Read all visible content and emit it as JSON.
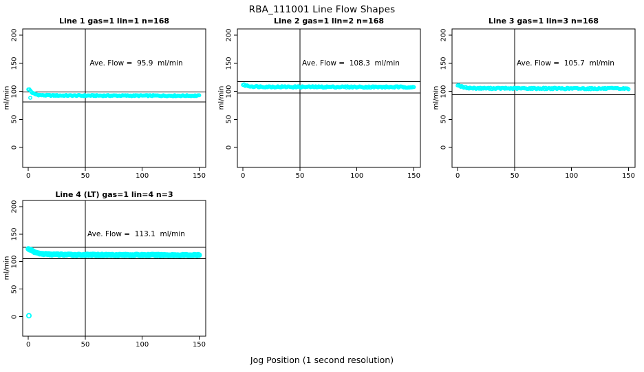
{
  "figure_title": "RBA_111001  Line Flow Shapes",
  "x_axis_title": "Jog Position (1 second resolution)",
  "y_axis_label": "ml/min",
  "colors": {
    "marker": "#00FFFF",
    "line": "#000000",
    "background": "#FFFFFF",
    "text": "#000000"
  },
  "axes": {
    "x_ticks": [
      0,
      50,
      100,
      150
    ],
    "y_ticks": [
      0,
      50,
      100,
      150,
      200
    ],
    "xlim": [
      0,
      150
    ],
    "ylim": [
      0,
      200
    ],
    "grid": false
  },
  "chart_data": [
    {
      "type": "scatter",
      "title": "Line 1 gas=1 lin=1 n=168",
      "annotation": "Ave. Flow =  95.9  ml/min",
      "ave_flow_ml_min": 95.9,
      "gas": 1,
      "lin": 1,
      "n": 168,
      "marker": "open-circle",
      "vline_x": 50,
      "hlines_y": [
        99,
        81
      ],
      "profile_points": [
        [
          0,
          104
        ],
        [
          1,
          103
        ],
        [
          2,
          100.5
        ],
        [
          3,
          98
        ],
        [
          5,
          95.5
        ],
        [
          8,
          93.8
        ],
        [
          12,
          93
        ],
        [
          20,
          92.6
        ],
        [
          40,
          92.4
        ],
        [
          150,
          92.2
        ]
      ],
      "outlier_points": [
        [
          1.7,
          88.5
        ]
      ],
      "jitter": 0.9,
      "marker_radius": 2.2
    },
    {
      "type": "scatter",
      "title": "Line 2 gas=1 lin=2 n=168",
      "annotation": "Ave. Flow =  108.3  ml/min",
      "ave_flow_ml_min": 108.3,
      "gas": 1,
      "lin": 2,
      "n": 168,
      "marker": "open-circle",
      "vline_x": 50,
      "hlines_y": [
        117.5,
        97
      ],
      "profile_points": [
        [
          0,
          112
        ],
        [
          2,
          110.5
        ],
        [
          5,
          109.3
        ],
        [
          10,
          108.5
        ],
        [
          30,
          108
        ],
        [
          150,
          107.6
        ]
      ],
      "outlier_points": [],
      "jitter": 1.2,
      "marker_radius": 2.2
    },
    {
      "type": "scatter",
      "title": "Line 3 gas=1 lin=3 n=168",
      "annotation": "Ave. Flow =  105.7  ml/min",
      "ave_flow_ml_min": 105.7,
      "gas": 1,
      "lin": 3,
      "n": 168,
      "marker": "open-circle",
      "vline_x": 50,
      "hlines_y": [
        115,
        94
      ],
      "profile_points": [
        [
          0,
          111.5
        ],
        [
          1,
          110.5
        ],
        [
          3,
          108.5
        ],
        [
          6,
          106.8
        ],
        [
          12,
          105.6
        ],
        [
          30,
          105.2
        ],
        [
          150,
          104.8
        ]
      ],
      "outlier_points": [],
      "jitter": 1.2,
      "marker_radius": 2.2
    },
    {
      "type": "scatter",
      "title": "Line 4 (LT) gas=1 lin=4 n=3",
      "annotation": "Ave. Flow =  113.1  ml/min",
      "ave_flow_ml_min": 113.1,
      "gas": 1,
      "lin": 4,
      "n": 3,
      "marker": "open-circle",
      "vline_x": 50,
      "hlines_y": [
        126,
        105.3
      ],
      "profile_points": [
        [
          0,
          123
        ],
        [
          2,
          121.5
        ],
        [
          4,
          118.5
        ],
        [
          7,
          116
        ],
        [
          12,
          114
        ],
        [
          20,
          113.2
        ],
        [
          40,
          112.4
        ],
        [
          150,
          111.8
        ]
      ],
      "outlier_points": [
        [
          0.5,
          1.5
        ]
      ],
      "jitter": 0.9,
      "marker_radius": 3.1
    }
  ]
}
